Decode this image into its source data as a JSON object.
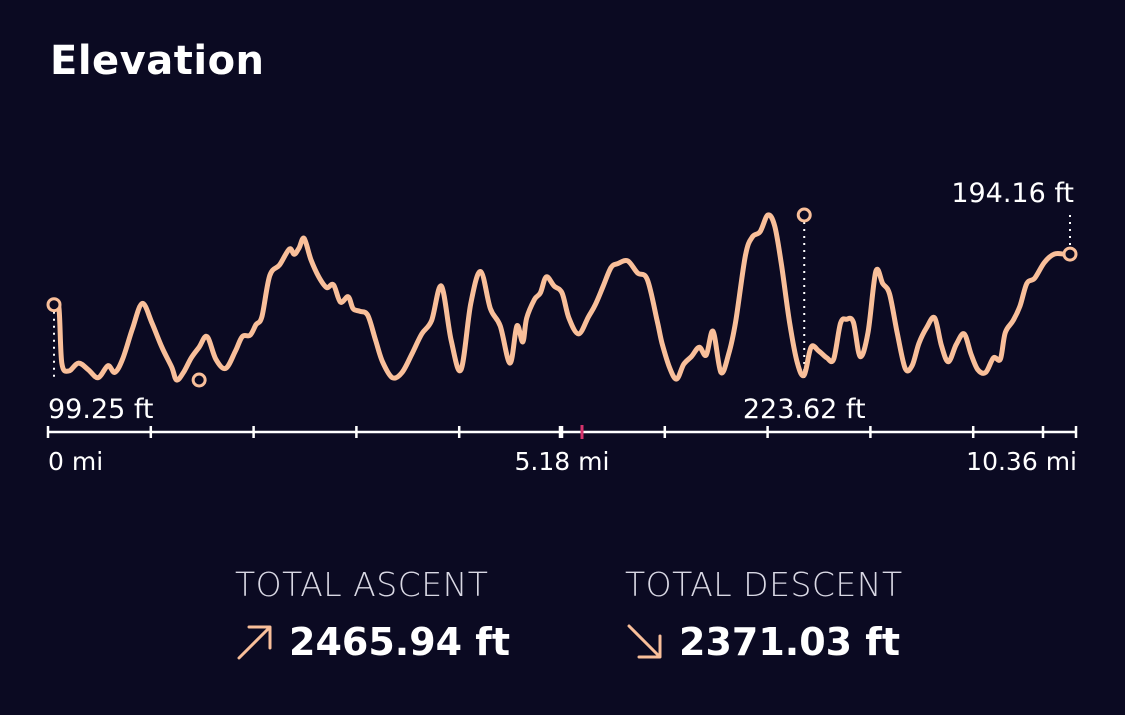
{
  "title": "Elevation",
  "colors": {
    "background": "#0b0a22",
    "line": "#f9bf9a",
    "axis": "#ffffff",
    "midpoint_tick": "#d6336c"
  },
  "stats": {
    "ascent": {
      "label": "TOTAL ASCENT",
      "value": "2465.94 ft",
      "icon": "arrow-up-right-icon"
    },
    "descent": {
      "label": "TOTAL DESCENT",
      "value": "2371.03 ft",
      "icon": "arrow-down-right-icon"
    }
  },
  "chart_data": {
    "type": "line",
    "xlabel": "",
    "ylabel": "",
    "xlim": [
      0,
      10.36
    ],
    "ylim": [
      99.25,
      223.62
    ],
    "x_tick_labels": [
      {
        "x": 0,
        "label": "0 mi"
      },
      {
        "x": 5.18,
        "label": "5.18 mi"
      },
      {
        "x": 10.36,
        "label": "10.36 mi"
      }
    ],
    "highlight_tick": 5.18,
    "point_labels": [
      {
        "x": 10.36,
        "label": "194.16 ft"
      },
      {
        "x": 1.48,
        "label": "99.25 ft"
      },
      {
        "x": 7.65,
        "label": "223.62 ft"
      }
    ],
    "series": [
      {
        "x": [
          0,
          0.05,
          0.08,
          0.15,
          0.25,
          0.35,
          0.45,
          0.55,
          0.62,
          0.7,
          0.8,
          0.9,
          1.0,
          1.1,
          1.2,
          1.25,
          1.32,
          1.4,
          1.48,
          1.56,
          1.65,
          1.75,
          1.85,
          1.92,
          2.0,
          2.06,
          2.12,
          2.2,
          2.3,
          2.4,
          2.45,
          2.5,
          2.55,
          2.62,
          2.7,
          2.78,
          2.85,
          2.92,
          3.0,
          3.05,
          3.12,
          3.2,
          3.28,
          3.35,
          3.45,
          3.55,
          3.65,
          3.75,
          3.85,
          3.95,
          4.05,
          4.15,
          4.25,
          4.35,
          4.45,
          4.55,
          4.65,
          4.72,
          4.78,
          4.82,
          4.9,
          4.96,
          5.02,
          5.1,
          5.18,
          5.25,
          5.35,
          5.45,
          5.52,
          5.6,
          5.68,
          5.75,
          5.85,
          5.95,
          6.05,
          6.15,
          6.2,
          6.28,
          6.35,
          6.42,
          6.5,
          6.58,
          6.65,
          6.72,
          6.8,
          6.88,
          6.95,
          7.05,
          7.12,
          7.2,
          7.28,
          7.35,
          7.42,
          7.5,
          7.58,
          7.65,
          7.72,
          7.8,
          7.88,
          7.95,
          8.02,
          8.08,
          8.15,
          8.22,
          8.3,
          8.38,
          8.45,
          8.52,
          8.6,
          8.68,
          8.75,
          8.82,
          8.9,
          8.98,
          9.05,
          9.12,
          9.2,
          9.28,
          9.35,
          9.42,
          9.5,
          9.58,
          9.65,
          9.7,
          9.78,
          9.85,
          9.92,
          10.0,
          10.1,
          10.2,
          10.3,
          10.36
        ],
        "y": [
          156,
          154,
          112,
          106,
          112,
          107,
          101,
          110,
          105,
          115,
          138,
          157,
          142,
          124,
          109,
          99.25,
          105,
          116,
          124,
          132,
          115,
          108,
          121,
          132,
          133,
          141,
          147,
          178,
          186,
          198,
          194,
          199,
          206,
          190,
          177,
          169,
          171,
          158,
          162,
          153,
          151,
          148,
          129,
          113,
          101,
          105,
          119,
          134,
          144,
          170,
          129,
          107,
          157,
          181,
          153,
          140,
          112,
          140,
          128,
          146,
          160,
          165,
          177,
          170,
          165,
          146,
          134,
          147,
          156,
          170,
          184,
          187,
          189,
          180,
          175,
          144,
          127,
          108,
          100,
          111,
          117,
          124,
          118,
          136,
          105,
          119,
          143,
          193,
          207,
          211,
          223.62,
          215,
          185,
          143,
          112,
          103,
          124,
          121,
          116,
          115,
          142,
          145,
          143,
          117,
          135,
          181,
          172,
          164,
          134,
          108,
          110,
          127,
          139,
          146,
          125,
          113,
          126,
          134,
          119,
          107,
          105,
          116,
          115,
          135,
          144,
          155,
          172,
          176,
          188,
          194.16,
          194.16,
          194.16
        ]
      }
    ]
  }
}
